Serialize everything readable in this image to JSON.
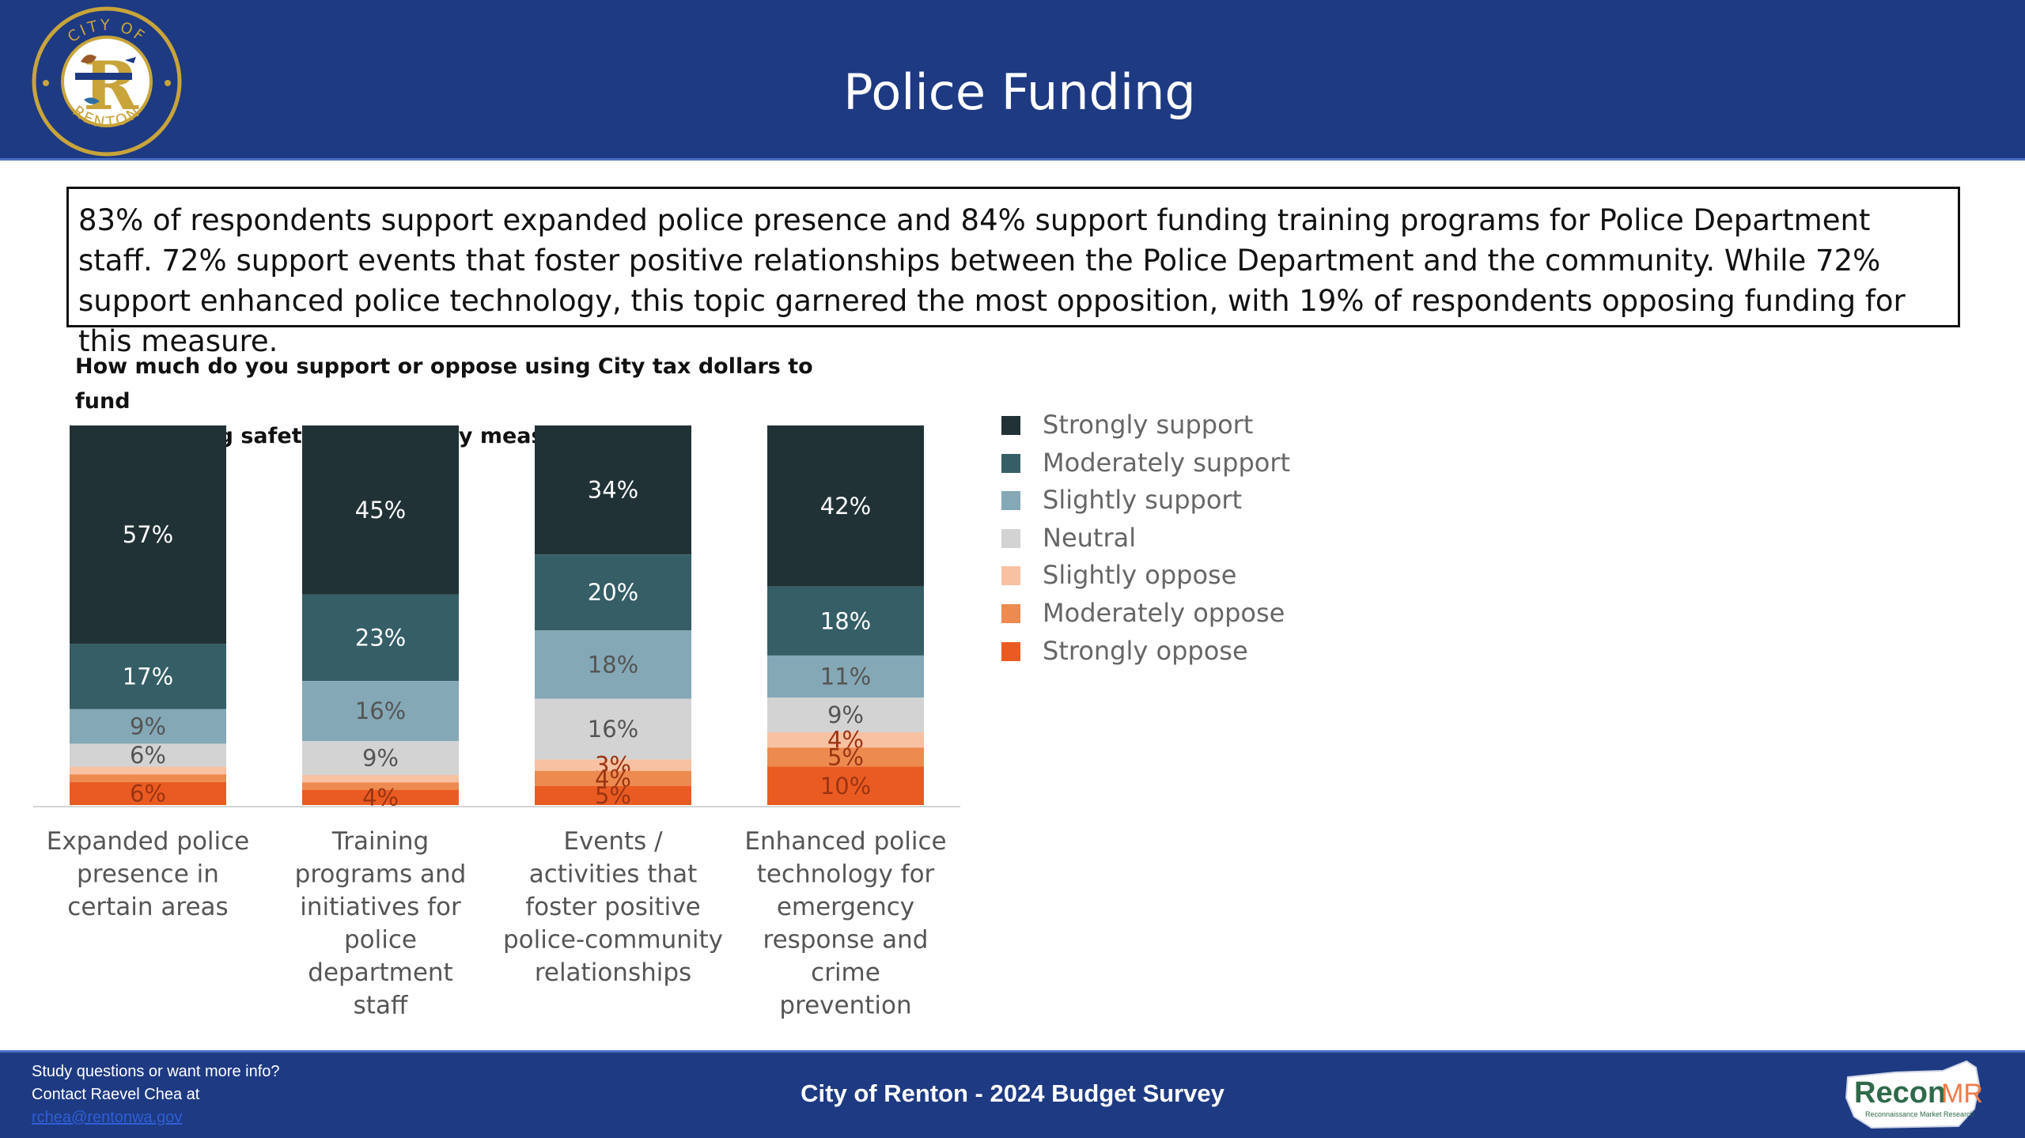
{
  "header": {
    "title": "Police Funding",
    "logo_text_top": "CITY OF",
    "logo_text_bottom": "RENTON"
  },
  "summary": "83% of respondents support expanded police presence and 84% support funding training programs for Police Department staff. 72% support events that foster positive relationships between the Police Department and the community. While 72% support enhanced police technology, this topic garnered the most opposition, with 19% of respondents opposing funding for this measure.",
  "question_line1": "How much do you support or oppose using City tax dollars to fund",
  "question_line2": "the following safety and security measures?",
  "chart_data": {
    "type": "bar",
    "stacked": true,
    "categories": [
      [
        "Expanded police",
        "presence in",
        "certain areas"
      ],
      [
        "Training",
        "programs and",
        "initiatives for",
        "police",
        "department",
        "staff"
      ],
      [
        "Events /",
        "activities that",
        "foster positive",
        "police-community",
        "relationships"
      ],
      [
        "Enhanced police",
        "technology for",
        "emergency",
        "response and",
        "crime",
        "prevention"
      ]
    ],
    "series": [
      {
        "name": "Strongly support",
        "color": "#213236",
        "values": [
          57,
          45,
          34,
          42
        ],
        "labels": [
          "57%",
          "45%",
          "34%",
          "42%"
        ]
      },
      {
        "name": "Moderately support",
        "color": "#355e66",
        "values": [
          17,
          23,
          20,
          18
        ],
        "labels": [
          "17%",
          "23%",
          "20%",
          "18%"
        ]
      },
      {
        "name": "Slightly support",
        "color": "#84a8b6",
        "values": [
          9,
          16,
          18,
          11
        ],
        "labels": [
          "9%",
          "16%",
          "18%",
          "11%"
        ]
      },
      {
        "name": "Neutral",
        "color": "#d3d3d3",
        "values": [
          6,
          9,
          16,
          9
        ],
        "labels": [
          "6%",
          "9%",
          "16%",
          "9%"
        ]
      },
      {
        "name": "Slightly oppose",
        "color": "#f7c1a2",
        "values": [
          2,
          2,
          3,
          4
        ],
        "labels": [
          "",
          "",
          "3%",
          "4%"
        ]
      },
      {
        "name": "Moderately oppose",
        "color": "#ec8a4f",
        "values": [
          2,
          2,
          4,
          5
        ],
        "labels": [
          "",
          "",
          "4%",
          "5%"
        ]
      },
      {
        "name": "Strongly oppose",
        "color": "#ea5b22",
        "values": [
          6,
          4,
          5,
          10
        ],
        "labels": [
          "6%",
          "4%",
          "5%",
          "10%"
        ]
      }
    ],
    "ylim": [
      0,
      100
    ],
    "legend_position": "right",
    "grid": false
  },
  "footer": {
    "contact_line1": "Study questions or want more info?",
    "contact_line2": "Contact Raevel Chea at",
    "contact_email": "rchea@rentonwa.gov",
    "title": "City of Renton - 2024 Budget Survey",
    "brand_name": "Recon",
    "brand_suffix": "MR",
    "brand_tagline": "Reconnaissance Market Research"
  }
}
